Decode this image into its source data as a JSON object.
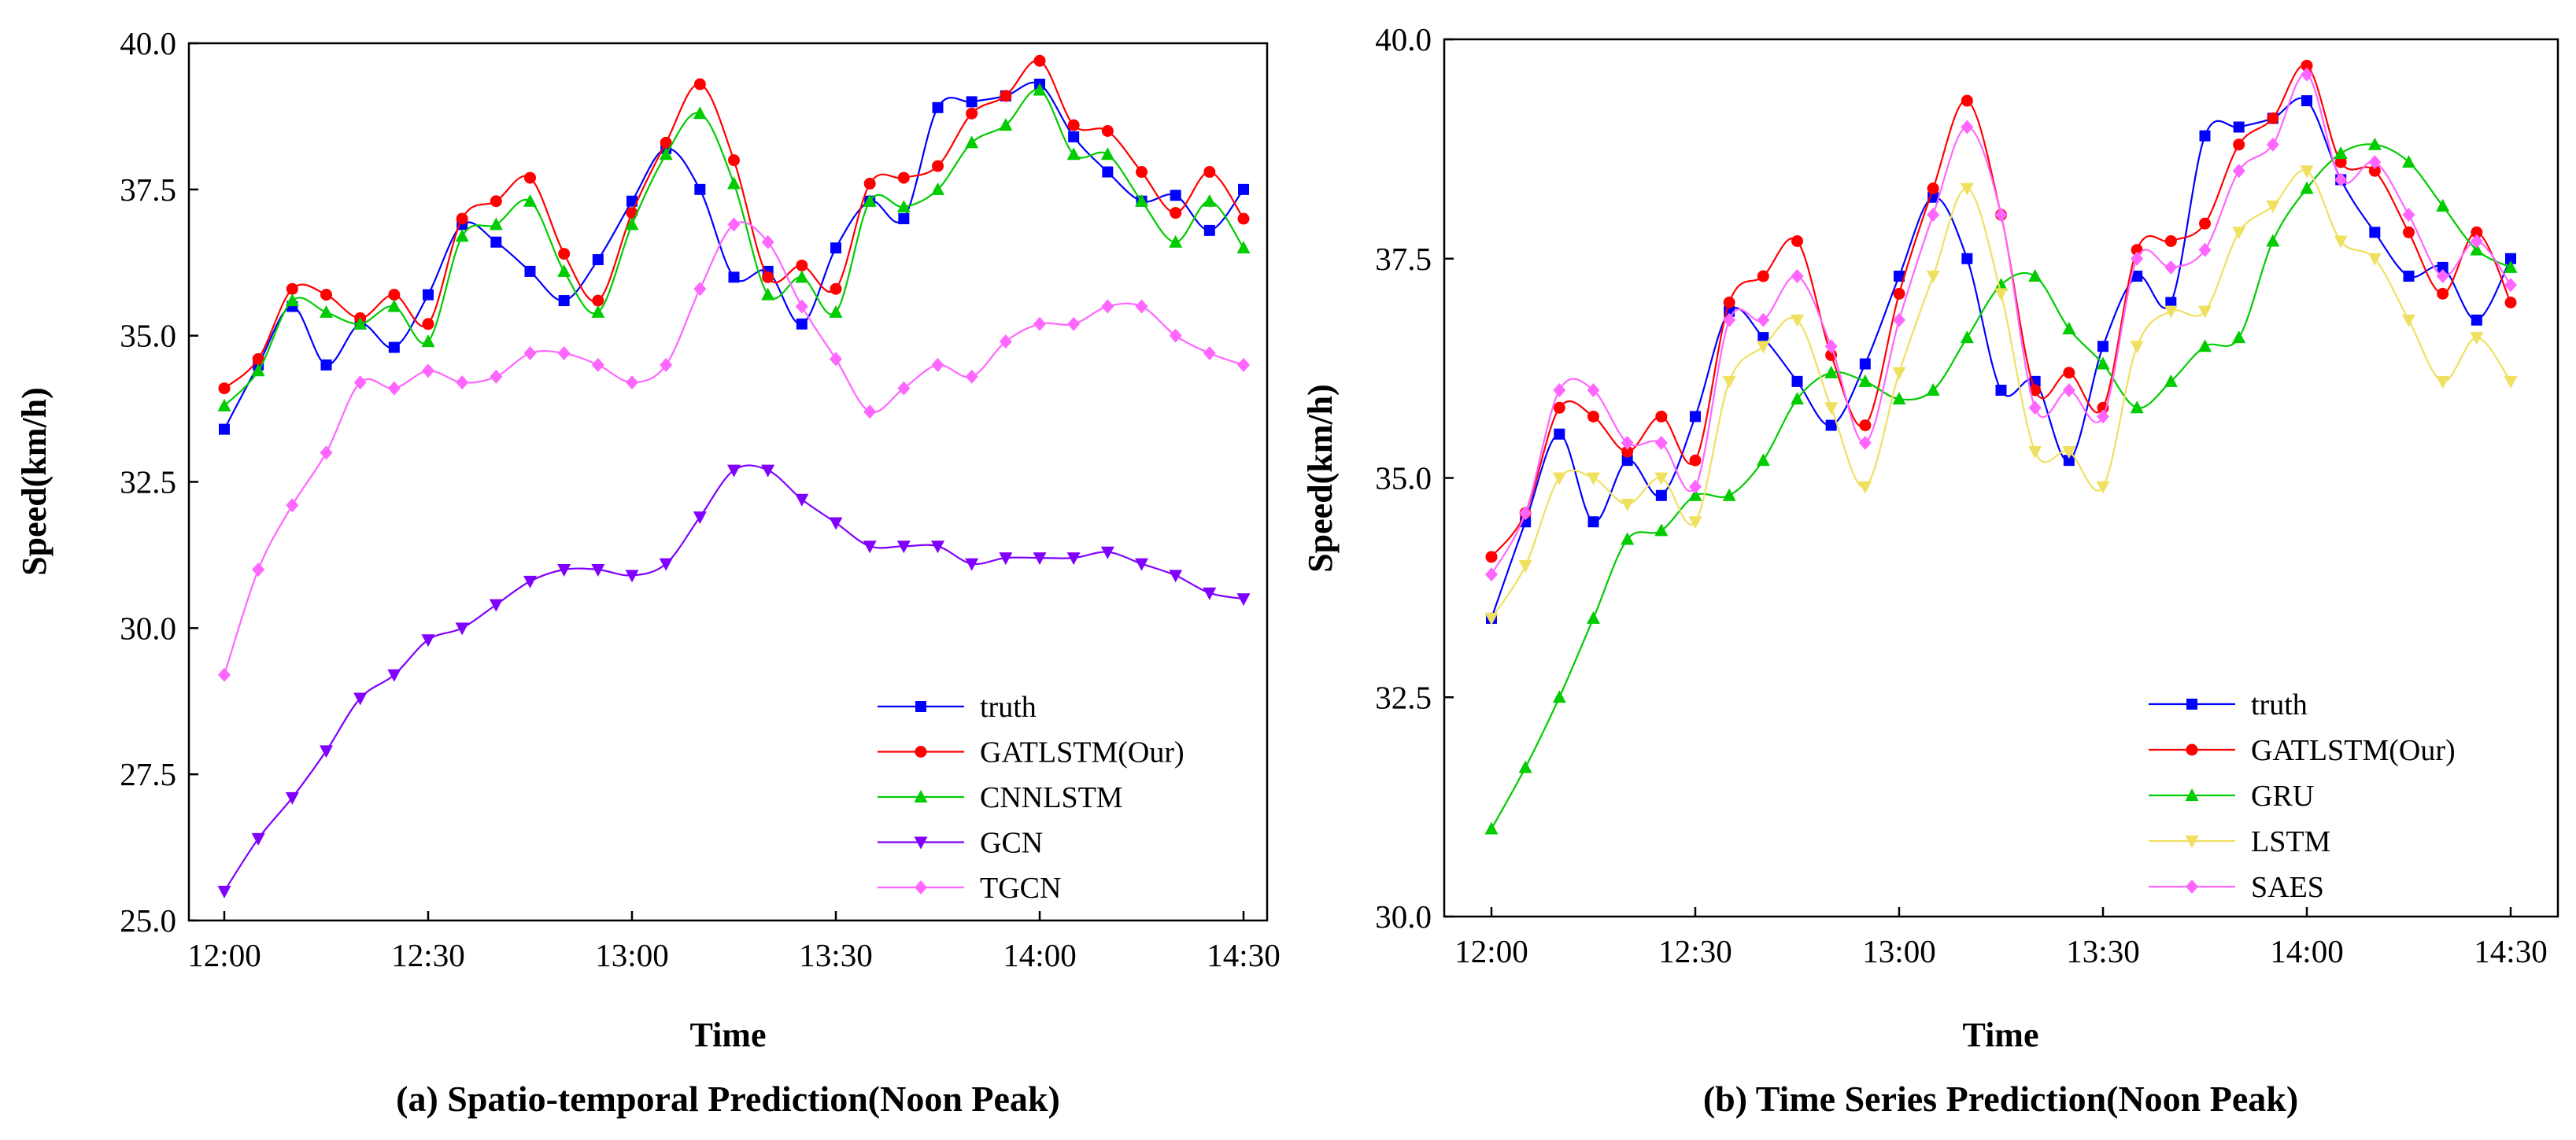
{
  "figure": {
    "colors": {
      "truth": "#0000ff",
      "GATLSTM(Our)": "#ff0000",
      "CNNLSTM": "#00cc00",
      "GRU": "#00cc00",
      "GCN": "#8000ff",
      "TGCN": "#ff66ff",
      "LSTM": "#f0e060",
      "SAES": "#ff66ff"
    }
  },
  "chart_data": [
    {
      "type": "line",
      "id": "a",
      "title": "(a) Spatio-temporal Prediction(Noon Peak)",
      "xlabel": "Time",
      "ylabel": "Speed(km/h)",
      "ylim": [
        25.0,
        40.0
      ],
      "yticks": [
        "25.0",
        "27.5",
        "30.0",
        "32.5",
        "35.0",
        "37.5",
        "40.0"
      ],
      "xticks": [
        "12:00",
        "12:30",
        "13:00",
        "13:30",
        "14:00",
        "14:30"
      ],
      "x_minutes": [
        0,
        5,
        10,
        15,
        20,
        25,
        30,
        35,
        40,
        45,
        50,
        55,
        60,
        65,
        70,
        75,
        80,
        85,
        90,
        95,
        100,
        105,
        110,
        115,
        120,
        125,
        130,
        135,
        140,
        145,
        150
      ],
      "legend_position": "bottom-right",
      "series": [
        {
          "name": "truth",
          "marker": "square",
          "values": [
            33.4,
            34.5,
            35.5,
            34.5,
            35.2,
            34.8,
            35.7,
            36.9,
            36.6,
            36.1,
            35.6,
            36.3,
            37.3,
            38.2,
            37.5,
            36.0,
            36.1,
            35.2,
            36.5,
            37.3,
            37.0,
            38.9,
            39.0,
            39.1,
            39.3,
            38.4,
            37.8,
            37.3,
            37.4,
            36.8,
            37.5
          ]
        },
        {
          "name": "GATLSTM(Our)",
          "marker": "circle",
          "values": [
            34.1,
            34.6,
            35.8,
            35.7,
            35.3,
            35.7,
            35.2,
            37.0,
            37.3,
            37.7,
            36.4,
            35.6,
            37.1,
            38.3,
            39.3,
            38.0,
            36.0,
            36.2,
            35.8,
            37.6,
            37.7,
            37.9,
            38.8,
            39.1,
            39.7,
            38.6,
            38.5,
            37.8,
            37.1,
            37.8,
            37.0
          ]
        },
        {
          "name": "CNNLSTM",
          "marker": "triangle-up",
          "values": [
            33.8,
            34.4,
            35.6,
            35.4,
            35.2,
            35.5,
            34.9,
            36.7,
            36.9,
            37.3,
            36.1,
            35.4,
            36.9,
            38.1,
            38.8,
            37.6,
            35.7,
            36.0,
            35.4,
            37.3,
            37.2,
            37.5,
            38.3,
            38.6,
            39.2,
            38.1,
            38.1,
            37.3,
            36.6,
            37.3,
            36.5
          ]
        },
        {
          "name": "GCN",
          "marker": "triangle-down",
          "values": [
            25.5,
            26.4,
            27.1,
            27.9,
            28.8,
            29.2,
            29.8,
            30.0,
            30.4,
            30.8,
            31.0,
            31.0,
            30.9,
            31.1,
            31.9,
            32.7,
            32.7,
            32.2,
            31.8,
            31.4,
            31.4,
            31.4,
            31.1,
            31.2,
            31.2,
            31.2,
            31.3,
            31.1,
            30.9,
            30.6,
            30.5
          ]
        },
        {
          "name": "TGCN",
          "marker": "diamond",
          "values": [
            29.2,
            31.0,
            32.1,
            33.0,
            34.2,
            34.1,
            34.4,
            34.2,
            34.3,
            34.7,
            34.7,
            34.5,
            34.2,
            34.5,
            35.8,
            36.9,
            36.6,
            35.5,
            34.6,
            33.7,
            34.1,
            34.5,
            34.3,
            34.9,
            35.2,
            35.2,
            35.5,
            35.5,
            35.0,
            34.7,
            34.5
          ]
        }
      ]
    },
    {
      "type": "line",
      "id": "b",
      "title": "(b) Time Series Prediction(Noon Peak)",
      "xlabel": "Time",
      "ylabel": "Speed(km/h)",
      "ylim": [
        30.0,
        40.0
      ],
      "yticks": [
        "30.0",
        "32.5",
        "35.0",
        "37.5",
        "40.0"
      ],
      "xticks": [
        "12:00",
        "12:30",
        "13:00",
        "13:30",
        "14:00",
        "14:30"
      ],
      "x_minutes": [
        0,
        5,
        10,
        15,
        20,
        25,
        30,
        35,
        40,
        45,
        50,
        55,
        60,
        65,
        70,
        75,
        80,
        85,
        90,
        95,
        100,
        105,
        110,
        115,
        120,
        125,
        130,
        135,
        140,
        145,
        150
      ],
      "legend_position": "bottom-right",
      "series": [
        {
          "name": "truth",
          "marker": "square",
          "values": [
            33.4,
            34.5,
            35.5,
            34.5,
            35.2,
            34.8,
            35.7,
            36.9,
            36.6,
            36.1,
            35.6,
            36.3,
            37.3,
            38.2,
            37.5,
            36.0,
            36.1,
            35.2,
            36.5,
            37.3,
            37.0,
            38.9,
            39.0,
            39.1,
            39.3,
            38.4,
            37.8,
            37.3,
            37.4,
            36.8,
            37.5
          ]
        },
        {
          "name": "GATLSTM(Our)",
          "marker": "circle",
          "values": [
            34.1,
            34.6,
            35.8,
            35.7,
            35.3,
            35.7,
            35.2,
            37.0,
            37.3,
            37.7,
            36.4,
            35.6,
            37.1,
            38.3,
            39.3,
            38.0,
            36.0,
            36.2,
            35.8,
            37.6,
            37.7,
            37.9,
            38.8,
            39.1,
            39.7,
            38.6,
            38.5,
            37.8,
            37.1,
            37.8,
            37.0
          ]
        },
        {
          "name": "GRU",
          "marker": "triangle-up",
          "values": [
            31.0,
            31.7,
            32.5,
            33.4,
            34.3,
            34.4,
            34.8,
            34.8,
            35.2,
            35.9,
            36.2,
            36.1,
            35.9,
            36.0,
            36.6,
            37.2,
            37.3,
            36.7,
            36.3,
            35.8,
            36.1,
            36.5,
            36.6,
            37.7,
            38.3,
            38.7,
            38.8,
            38.6,
            38.1,
            37.6,
            37.4
          ]
        },
        {
          "name": "LSTM",
          "marker": "triangle-down",
          "values": [
            33.4,
            34.0,
            35.0,
            35.0,
            34.7,
            35.0,
            34.5,
            36.1,
            36.5,
            36.8,
            35.8,
            34.9,
            36.2,
            37.3,
            38.3,
            37.1,
            35.3,
            35.3,
            34.9,
            36.5,
            36.9,
            36.9,
            37.8,
            38.1,
            38.5,
            37.7,
            37.5,
            36.8,
            36.1,
            36.6,
            36.1
          ]
        },
        {
          "name": "SAES",
          "marker": "diamond",
          "values": [
            33.9,
            34.6,
            36.0,
            36.0,
            35.4,
            35.4,
            34.9,
            36.8,
            36.8,
            37.3,
            36.5,
            35.4,
            36.8,
            38.0,
            39.0,
            38.0,
            35.8,
            36.0,
            35.7,
            37.5,
            37.4,
            37.6,
            38.5,
            38.8,
            39.6,
            38.4,
            38.6,
            38.0,
            37.3,
            37.7,
            37.2
          ]
        }
      ]
    }
  ]
}
